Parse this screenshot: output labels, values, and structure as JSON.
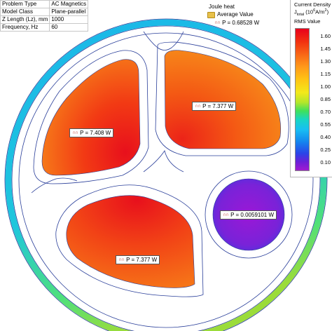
{
  "properties": [
    {
      "key": "Problem Type",
      "value": "AC Magnetics"
    },
    {
      "key": "Model Class",
      "value": "Plane-parallel"
    },
    {
      "key": "Z Length (Lz), mm",
      "value": "1000"
    },
    {
      "key": "Frequency, Hz",
      "value": "60"
    }
  ],
  "joule": {
    "title": "Joule heat",
    "average_label": "Average Value",
    "average_value": "P = 0.68528 W",
    "folder_icon": "folder-icon",
    "probe_icon": "probe-icon"
  },
  "legend": {
    "title": "Current Density",
    "quantity": "J",
    "subscript": "total",
    "unit_prefix": "(10",
    "unit_exp": "6",
    "unit_mid": "A/m",
    "unit_exp2": "2",
    "unit_end": ")",
    "mode": "RMS Value",
    "ticks": [
      "1.60",
      "1.45",
      "1.30",
      "1.15",
      "1.00",
      "0.85",
      "0.70",
      "0.55",
      "0.40",
      "0.25",
      "0.10"
    ]
  },
  "conductors": [
    {
      "label": "P = 7.408 W"
    },
    {
      "label": "P = 7.377 W"
    },
    {
      "label": "P = 7.377 W"
    },
    {
      "label": "P = 0.0059101 W"
    }
  ],
  "colors": {
    "hot": "#e8101c",
    "warm": "#f56a16",
    "shield_blue": "#1ab4e8",
    "core_purple": "#8a1fd4",
    "outline": "#2a3f9a"
  }
}
